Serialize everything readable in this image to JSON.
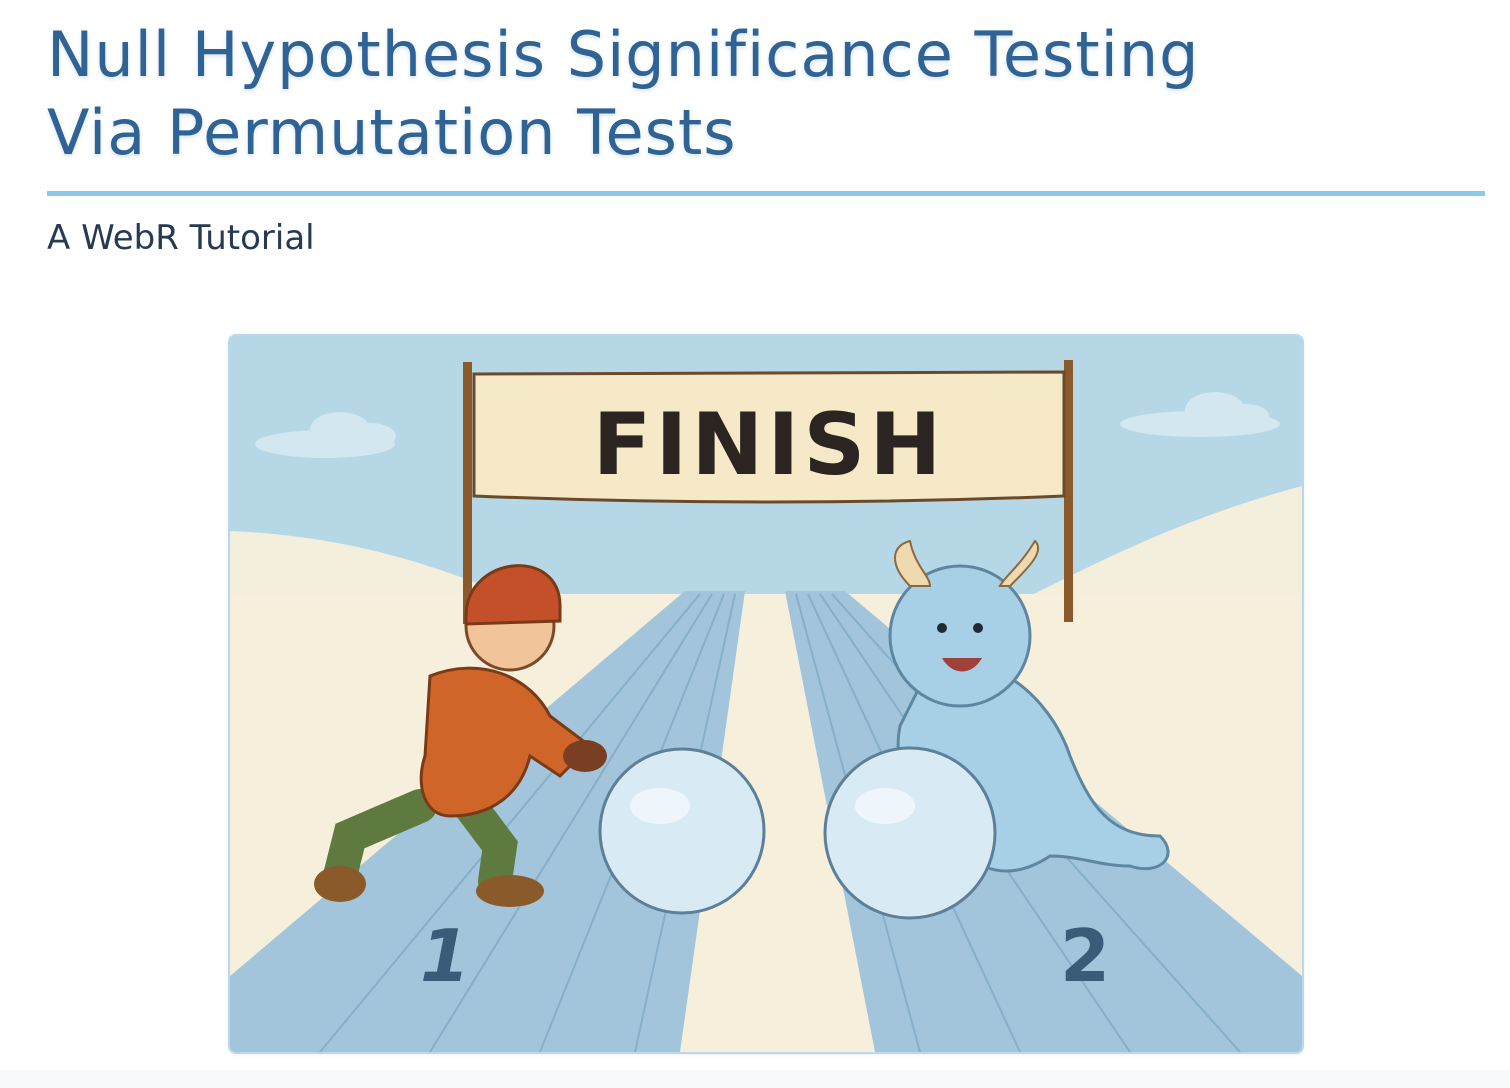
{
  "header": {
    "title_line1": "Null Hypothesis Significance Testing",
    "title_line2": "Via Permutation Tests",
    "subtitle": "A WebR Tutorial"
  },
  "hero_image": {
    "banner_text": "FINISH",
    "lane_1_number": "1",
    "lane_2_number": "2"
  },
  "colors": {
    "title": "#2f6396",
    "rule": "#8cc9ef",
    "subtitle": "#263b52",
    "sky": "#b6d8e6",
    "snow": "#f6efdc",
    "lane": "#9fc3da"
  }
}
